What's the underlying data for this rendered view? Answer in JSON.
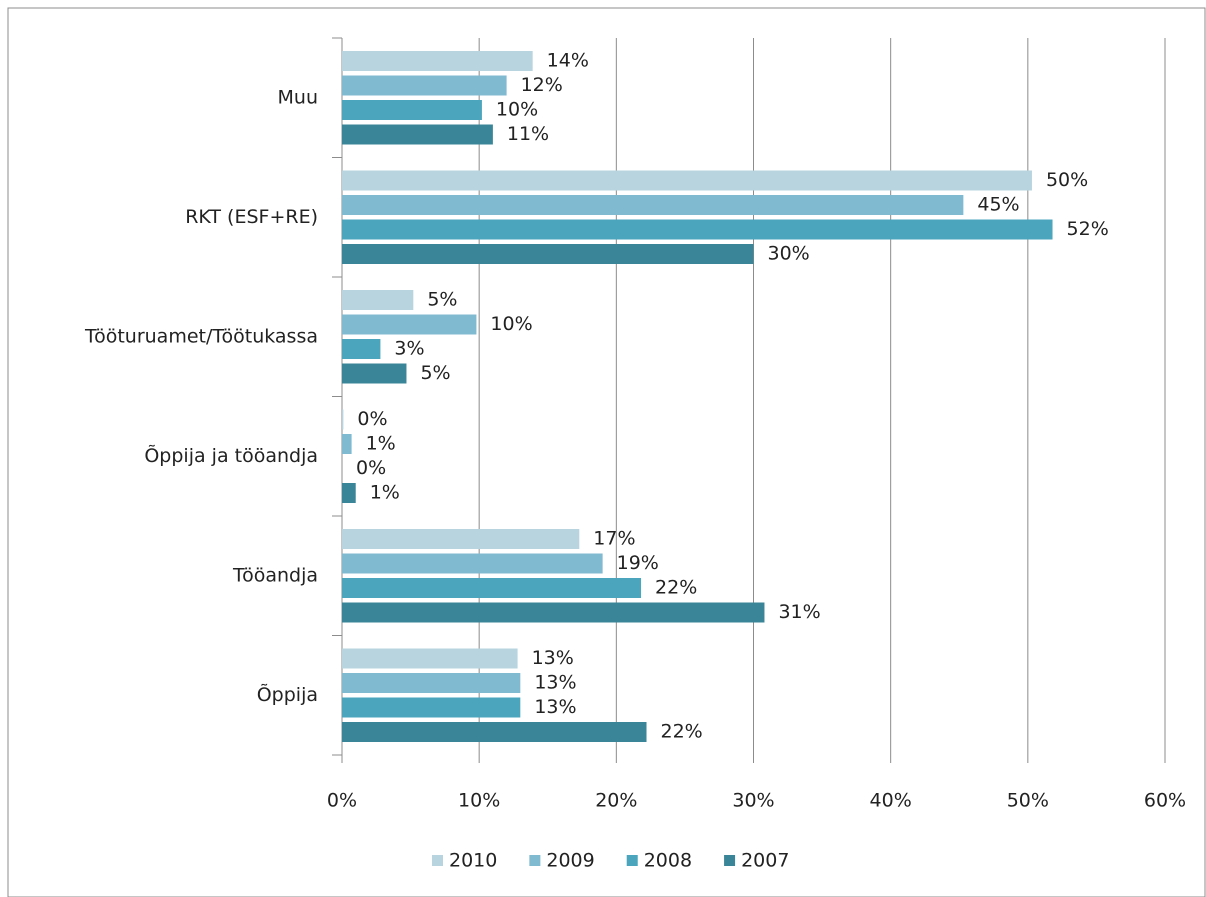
{
  "chart_data": {
    "type": "bar",
    "orientation": "horizontal",
    "categories": [
      "Muu",
      "RKT (ESF+RE)",
      "Tööturuamet/Töötukassa",
      "Õppija ja tööandja",
      "Tööandja",
      "Õppija"
    ],
    "series": [
      {
        "name": "2010",
        "color": "#b7d4df",
        "values": [
          13.9,
          50.3,
          5.2,
          0.1,
          17.3,
          12.8
        ],
        "value_labels": [
          "14%",
          "50%",
          "5%",
          "0%",
          "17%",
          "13%"
        ]
      },
      {
        "name": "2009",
        "color": "#7fbad0",
        "values": [
          12.0,
          45.3,
          9.8,
          0.7,
          19.0,
          13.0
        ],
        "value_labels": [
          "12%",
          "45%",
          "10%",
          "1%",
          "19%",
          "13%"
        ]
      },
      {
        "name": "2008",
        "color": "#4aa5bd",
        "values": [
          10.2,
          51.8,
          2.8,
          0.0,
          21.8,
          13.0
        ],
        "value_labels": [
          "10%",
          "52%",
          "3%",
          "0%",
          "22%",
          "13%"
        ]
      },
      {
        "name": "2007",
        "color": "#3a8598",
        "values": [
          11.0,
          30.0,
          4.7,
          1.0,
          30.8,
          22.2
        ],
        "value_labels": [
          "11%",
          "30%",
          "5%",
          "1%",
          "31%",
          "22%"
        ]
      }
    ],
    "xlim": [
      0,
      60
    ],
    "xticks": [
      {
        "value": 0,
        "label": "0%"
      },
      {
        "value": 10,
        "label": "10%"
      },
      {
        "value": 20,
        "label": "20%"
      },
      {
        "value": 30,
        "label": "30%"
      },
      {
        "value": 40,
        "label": "40%"
      },
      {
        "value": 50,
        "label": "50%"
      },
      {
        "value": 60,
        "label": "60%"
      }
    ],
    "grid": true,
    "legend": "bottom"
  }
}
